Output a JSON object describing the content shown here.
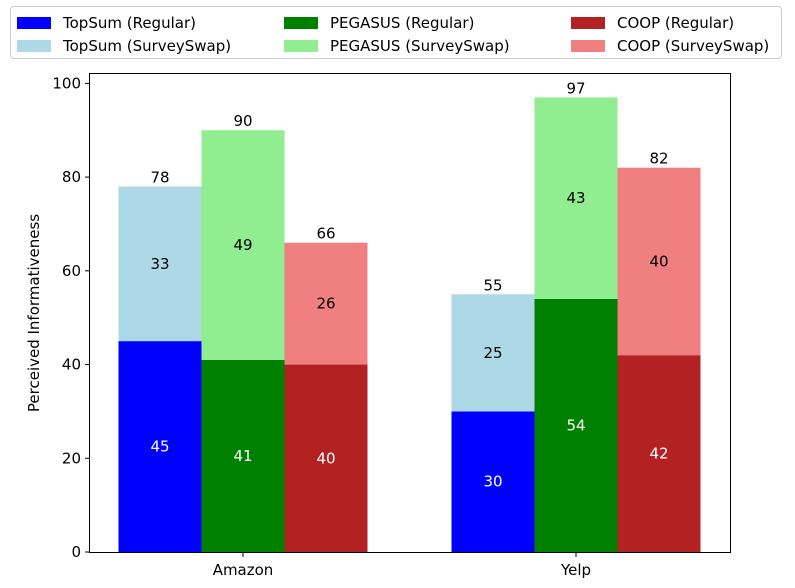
{
  "chart_data": {
    "type": "bar",
    "stacked": true,
    "title": "",
    "xlabel": "",
    "ylabel": "Perceived Informativeness",
    "ylim": [
      0,
      102
    ],
    "yticks": [
      0,
      20,
      40,
      60,
      80,
      100
    ],
    "categories": [
      "Amazon",
      "Yelp"
    ],
    "legend_position": "top",
    "groups": [
      {
        "name": "TopSum",
        "series": [
          {
            "name": "TopSum (Regular)",
            "values": [
              45,
              30
            ],
            "color": "#0000ff",
            "label_color": "#ffffff"
          },
          {
            "name": "TopSum (SurveySwap)",
            "values": [
              33,
              25
            ],
            "color": "#add8e6",
            "label_color": "#000000"
          }
        ],
        "totals": [
          78,
          55
        ]
      },
      {
        "name": "PEGASUS",
        "series": [
          {
            "name": "PEGASUS (Regular)",
            "values": [
              41,
              54
            ],
            "color": "#008000",
            "label_color": "#ffffff"
          },
          {
            "name": "PEGASUS (SurveySwap)",
            "values": [
              49,
              43
            ],
            "color": "#90ee90",
            "label_color": "#000000"
          }
        ],
        "totals": [
          90,
          97
        ]
      },
      {
        "name": "COOP",
        "series": [
          {
            "name": "COOP (Regular)",
            "values": [
              40,
              42
            ],
            "color": "#b22222",
            "label_color": "#ffffff"
          },
          {
            "name": "COOP (SurveySwap)",
            "values": [
              26,
              40
            ],
            "color": "#f08080",
            "label_color": "#000000"
          }
        ],
        "totals": [
          66,
          82
        ]
      }
    ]
  }
}
